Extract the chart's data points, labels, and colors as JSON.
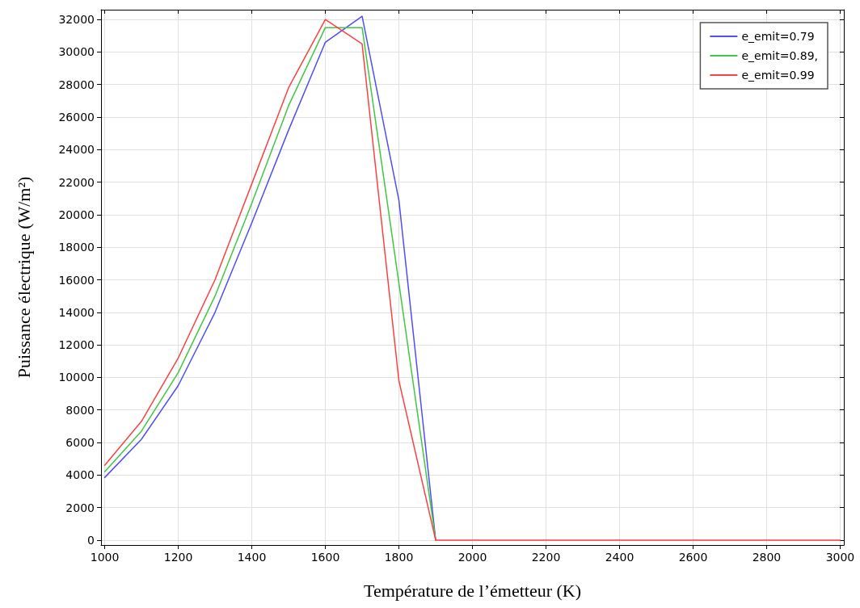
{
  "chart_data": {
    "type": "line",
    "xlabel": "Température de l’émetteur (K)",
    "ylabel": "Puissance électrique (W/m²)",
    "x": [
      1000,
      1100,
      1200,
      1300,
      1400,
      1500,
      1600,
      1700,
      1800,
      1900,
      2000,
      2100,
      2200,
      2300,
      2400,
      2500,
      2600,
      2700,
      2800,
      2900,
      3000
    ],
    "series": [
      {
        "name": "e_emit=0.79",
        "color": "#4d4dff",
        "values": [
          3850,
          6200,
          9500,
          14000,
          19500,
          25200,
          30600,
          32200,
          20900,
          0,
          null,
          null,
          null,
          null,
          null,
          null,
          null,
          null,
          null,
          null,
          null
        ]
      },
      {
        "name": "e_emit=0.89,",
        "color": "#40c840",
        "values": [
          4200,
          6700,
          10300,
          15000,
          20700,
          26700,
          31500,
          31500,
          15800,
          0,
          null,
          null,
          null,
          null,
          null,
          null,
          null,
          null,
          null,
          null,
          null
        ]
      },
      {
        "name": "e_emit=0.99",
        "color": "#ff4040",
        "values": [
          4600,
          7300,
          11200,
          16000,
          21900,
          27800,
          32000,
          30500,
          9800,
          0,
          0,
          0,
          0,
          0,
          0,
          0,
          0,
          0,
          0,
          0,
          0
        ]
      }
    ],
    "xlim": [
      990,
      3010
    ],
    "xticks": [
      1000,
      1200,
      1400,
      1600,
      1800,
      2000,
      2200,
      2400,
      2600,
      2800,
      3000
    ],
    "ylim": [
      -300,
      32600
    ],
    "yticks": [
      0,
      2000,
      4000,
      6000,
      8000,
      10000,
      12000,
      14000,
      16000,
      18000,
      20000,
      22000,
      24000,
      26000,
      28000,
      30000,
      32000
    ],
    "grid": true,
    "legend": "top right",
    "marker": "none",
    "line_style": "solid"
  }
}
